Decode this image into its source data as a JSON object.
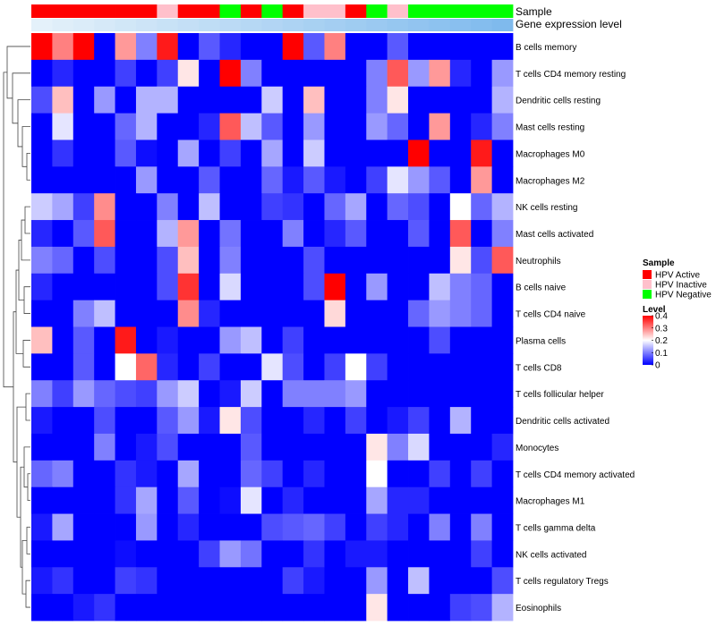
{
  "chart_data": {
    "type": "heatmap",
    "annotation_labels": {
      "sample": "Sample",
      "gene": "Gene expression level"
    },
    "rows": [
      "B cells memory",
      "T cells CD4 memory resting",
      "Dendritic cells resting",
      "Mast cells resting",
      "Macrophages M0",
      "Macrophages M2",
      "NK cells resting",
      "Mast cells activated",
      "Neutrophils",
      "B cells naive",
      "T cells CD4 naive",
      "Plasma cells",
      "T cells CD8",
      "T cells follicular helper",
      "Dendritic cells activated",
      "Monocytes",
      "T cells CD4 memory activated",
      "Macrophages M1",
      "T cells gamma delta",
      "NK cells activated",
      "T cells regulatory  Tregs",
      "Eosinophils"
    ],
    "sample_groups": [
      "A",
      "A",
      "A",
      "A",
      "A",
      "A",
      "I",
      "A",
      "A",
      "N",
      "A",
      "N",
      "A",
      "I",
      "I",
      "A",
      "N",
      "I",
      "N",
      "N",
      "N",
      "N",
      "N"
    ],
    "gene_expression": [
      0.02,
      0.06,
      0.1,
      0.14,
      0.18,
      0.22,
      0.26,
      0.3,
      0.34,
      0.38,
      0.42,
      0.46,
      0.5,
      0.54,
      0.58,
      0.62,
      0.66,
      0.7,
      0.74,
      0.78,
      0.82,
      0.86,
      0.9
    ],
    "values": [
      [
        0.4,
        0.3,
        0.4,
        0.0,
        0.28,
        0.1,
        0.38,
        0.0,
        0.07,
        0.03,
        0.0,
        0.0,
        0.4,
        0.07,
        0.3,
        0.0,
        0.0,
        0.07,
        0.0,
        0.0,
        0.0,
        0.0,
        0.0
      ],
      [
        0.0,
        0.03,
        0.0,
        0.0,
        0.05,
        0.0,
        0.05,
        0.22,
        0.0,
        0.4,
        0.1,
        0.0,
        0.0,
        0.0,
        0.0,
        0.0,
        0.1,
        0.33,
        0.12,
        0.28,
        0.03,
        0.0,
        0.12
      ],
      [
        0.06,
        0.25,
        0.0,
        0.12,
        0.0,
        0.14,
        0.14,
        0.0,
        0.0,
        0.0,
        0.0,
        0.16,
        0.0,
        0.25,
        0.0,
        0.0,
        0.1,
        0.22,
        0.0,
        0.0,
        0.0,
        0.0,
        0.14
      ],
      [
        0.0,
        0.18,
        0.0,
        0.0,
        0.08,
        0.14,
        0.0,
        0.0,
        0.03,
        0.33,
        0.15,
        0.07,
        0.0,
        0.12,
        0.0,
        0.0,
        0.12,
        0.08,
        0.0,
        0.28,
        0.0,
        0.03,
        0.1
      ],
      [
        0.0,
        0.04,
        0.0,
        0.0,
        0.07,
        0.01,
        0.0,
        0.13,
        0.0,
        0.05,
        0.0,
        0.13,
        0.0,
        0.16,
        0.0,
        0.0,
        0.0,
        0.0,
        0.4,
        0.0,
        0.0,
        0.38,
        0.0
      ],
      [
        0.0,
        0.0,
        0.0,
        0.0,
        0.0,
        0.12,
        0.0,
        0.0,
        0.07,
        0.0,
        0.0,
        0.08,
        0.02,
        0.07,
        0.02,
        0.0,
        0.05,
        0.18,
        0.12,
        0.07,
        0.0,
        0.28,
        0.0
      ],
      [
        0.16,
        0.13,
        0.05,
        0.29,
        0.0,
        0.0,
        0.1,
        0.0,
        0.15,
        0.0,
        0.0,
        0.05,
        0.04,
        0.0,
        0.08,
        0.13,
        0.0,
        0.08,
        0.06,
        0.0,
        0.2,
        0.08,
        0.14
      ],
      [
        0.03,
        0.0,
        0.07,
        0.33,
        0.0,
        0.0,
        0.14,
        0.28,
        0.0,
        0.09,
        0.0,
        0.0,
        0.1,
        0.0,
        0.03,
        0.07,
        0.0,
        0.0,
        0.07,
        0.0,
        0.33,
        0.0,
        0.1
      ],
      [
        0.1,
        0.08,
        0.0,
        0.06,
        0.0,
        0.0,
        0.06,
        0.25,
        0.0,
        0.1,
        0.0,
        0.0,
        0.0,
        0.06,
        0.0,
        0.0,
        0.0,
        0.0,
        0.0,
        0.0,
        0.22,
        0.06,
        0.33
      ],
      [
        0.03,
        0.0,
        0.0,
        0.0,
        0.0,
        0.0,
        0.06,
        0.36,
        0.0,
        0.17,
        0.0,
        0.0,
        0.0,
        0.06,
        0.4,
        0.0,
        0.12,
        0.0,
        0.0,
        0.15,
        0.1,
        0.08,
        0.0
      ],
      [
        0.0,
        0.0,
        0.1,
        0.15,
        0.0,
        0.0,
        0.0,
        0.29,
        0.03,
        0.0,
        0.0,
        0.0,
        0.0,
        0.0,
        0.23,
        0.0,
        0.0,
        0.0,
        0.08,
        0.12,
        0.1,
        0.08,
        0.0
      ],
      [
        0.25,
        0.0,
        0.07,
        0.0,
        0.38,
        0.0,
        0.02,
        0.0,
        0.0,
        0.12,
        0.15,
        0.0,
        0.05,
        0.0,
        0.0,
        0.0,
        0.0,
        0.0,
        0.0,
        0.06,
        0.0,
        0.0,
        0.0
      ],
      [
        0.0,
        0.0,
        0.07,
        0.0,
        0.2,
        0.32,
        0.03,
        0.0,
        0.05,
        0.0,
        0.0,
        0.18,
        0.06,
        0.0,
        0.05,
        0.2,
        0.05,
        0.0,
        0.0,
        0.0,
        0.0,
        0.0,
        0.0
      ],
      [
        0.1,
        0.05,
        0.12,
        0.08,
        0.06,
        0.05,
        0.12,
        0.16,
        0.0,
        0.02,
        0.16,
        0.0,
        0.1,
        0.1,
        0.1,
        0.12,
        0.0,
        0.0,
        0.0,
        0.0,
        0.0,
        0.0,
        0.0
      ],
      [
        0.02,
        0.0,
        0.0,
        0.06,
        0.0,
        0.0,
        0.07,
        0.12,
        0.02,
        0.22,
        0.06,
        0.0,
        0.0,
        0.03,
        0.0,
        0.05,
        0.0,
        0.02,
        0.05,
        0.0,
        0.14,
        0.0,
        0.0
      ],
      [
        0.0,
        0.0,
        0.0,
        0.1,
        0.0,
        0.02,
        0.06,
        0.0,
        0.0,
        0.0,
        0.07,
        0.0,
        0.0,
        0.0,
        0.0,
        0.0,
        0.22,
        0.1,
        0.17,
        0.0,
        0.0,
        0.0,
        0.03
      ],
      [
        0.08,
        0.1,
        0.0,
        0.0,
        0.04,
        0.02,
        0.0,
        0.13,
        0.0,
        0.0,
        0.08,
        0.05,
        0.0,
        0.03,
        0.0,
        0.0,
        0.2,
        0.0,
        0.0,
        0.05,
        0.0,
        0.05,
        0.0
      ],
      [
        0.0,
        0.0,
        0.0,
        0.0,
        0.04,
        0.13,
        0.0,
        0.07,
        0.0,
        0.01,
        0.18,
        0.0,
        0.03,
        0.0,
        0.0,
        0.0,
        0.13,
        0.03,
        0.03,
        0.0,
        0.0,
        0.0,
        0.0
      ],
      [
        0.02,
        0.13,
        0.0,
        0.0,
        0.0,
        0.12,
        0.0,
        0.03,
        0.0,
        0.0,
        0.0,
        0.06,
        0.07,
        0.08,
        0.05,
        0.0,
        0.05,
        0.03,
        0.0,
        0.1,
        0.0,
        0.1,
        0.0
      ],
      [
        0.0,
        0.0,
        0.0,
        0.0,
        0.01,
        0.0,
        0.0,
        0.0,
        0.05,
        0.12,
        0.09,
        0.0,
        0.0,
        0.04,
        0.0,
        0.02,
        0.02,
        0.0,
        0.0,
        0.0,
        0.0,
        0.05,
        0.0
      ],
      [
        0.02,
        0.04,
        0.0,
        0.0,
        0.05,
        0.04,
        0.0,
        0.0,
        0.0,
        0.0,
        0.0,
        0.0,
        0.05,
        0.02,
        0.0,
        0.0,
        0.12,
        0.0,
        0.15,
        0.0,
        0.0,
        0.0,
        0.06
      ],
      [
        0.0,
        0.0,
        0.02,
        0.04,
        0.0,
        0.0,
        0.0,
        0.0,
        0.0,
        0.0,
        0.0,
        0.0,
        0.0,
        0.0,
        0.0,
        0.0,
        0.22,
        0.0,
        0.0,
        0.0,
        0.05,
        0.06,
        0.14
      ]
    ],
    "legend": {
      "sample_title": "Sample",
      "sample_entries": [
        {
          "key": "A",
          "label": "HPV Active",
          "color": "#ff0000"
        },
        {
          "key": "I",
          "label": "HPV Inactive",
          "color": "#ffc0cb"
        },
        {
          "key": "N",
          "label": "HPV Negative",
          "color": "#00ff00"
        }
      ],
      "level_title": "Level",
      "level_ticks": [
        "0.4",
        "0.3",
        "0.2",
        "0.1",
        "0"
      ],
      "level_tick_values": [
        0.4,
        0.3,
        0.2,
        0.1,
        0.0
      ]
    },
    "value_range": [
      0,
      0.4
    ],
    "colors": {
      "low": "#0000ff",
      "mid": "#ffffff",
      "high": "#ff0000",
      "gene_low": "#e6f2fa",
      "gene_high": "#74b4ec"
    }
  }
}
